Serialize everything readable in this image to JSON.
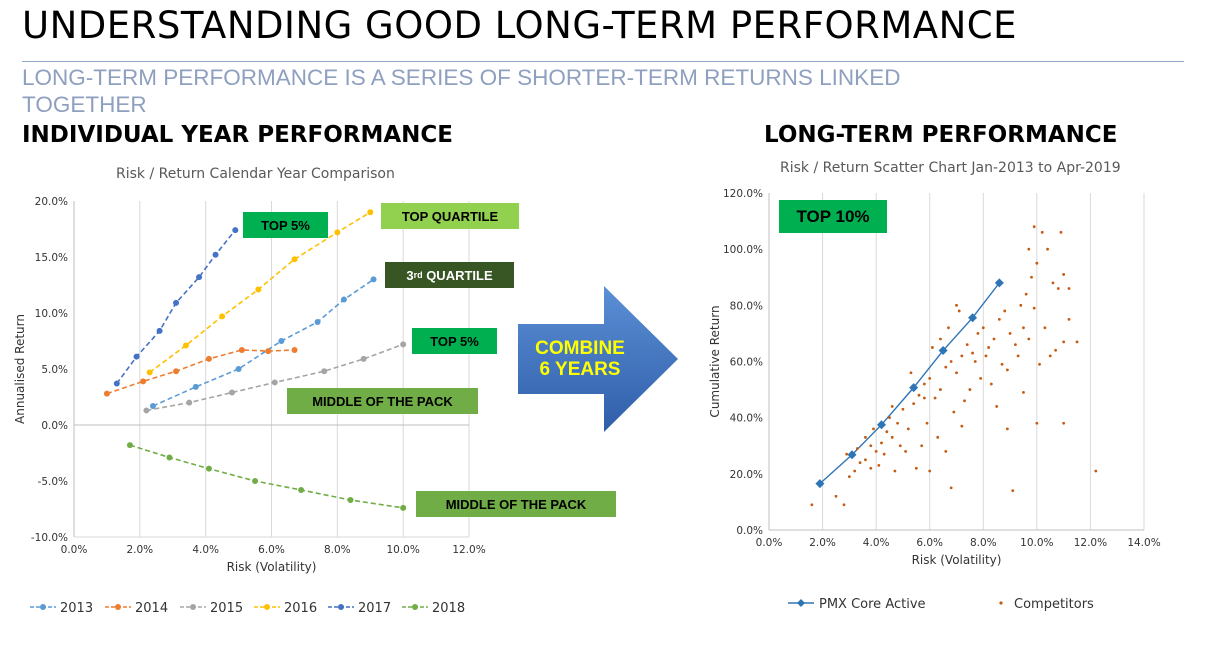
{
  "header": {
    "title": "UNDERSTANDING GOOD LONG-TERM PERFORMANCE",
    "subtitle": "LONG-TERM PERFORMANCE IS A SERIES OF SHORTER-TERM RETURNS LINKED TOGETHER"
  },
  "left_section": {
    "heading": "INDIVIDUAL YEAR PERFORMANCE"
  },
  "right_section": {
    "heading": "LONG-TERM PERFORMANCE"
  },
  "arrow": {
    "line1": "COMBINE",
    "line2": "6 YEARS",
    "color": "#3f6fb8"
  },
  "tags": {
    "top5_upper": "TOP 5%",
    "top_quartile": "TOP QUARTILE",
    "third_quartile_num": "3",
    "third_quartile_sup": "rd",
    "third_quartile_rest": " QUARTILE",
    "top5_lower": "TOP 5%",
    "middle_upper": "MIDDLE OF THE PACK",
    "middle_lower": "MIDDLE OF THE PACK",
    "top10": "TOP 10%"
  },
  "chart_data": [
    {
      "type": "line",
      "title": "Risk / Return Calendar Year Comparison",
      "xlabel": "Risk (Volatility)",
      "ylabel": "Annualised Return",
      "xlim": [
        0,
        12
      ],
      "ylim": [
        -10,
        20
      ],
      "x_ticks": [
        "0.0%",
        "2.0%",
        "4.0%",
        "6.0%",
        "8.0%",
        "10.0%",
        "12.0%"
      ],
      "y_ticks": [
        "20.0%",
        "15.0%",
        "10.0%",
        "5.0%",
        "0.0%",
        "-5.0%",
        "-10.0%"
      ],
      "grid": "vertical",
      "legend": "bottom",
      "series": [
        {
          "name": "2013",
          "color": "#5b9bd5",
          "points": [
            [
              2.4,
              1.7
            ],
            [
              3.7,
              3.4
            ],
            [
              5.0,
              5.0
            ],
            [
              6.3,
              7.5
            ],
            [
              7.4,
              9.2
            ],
            [
              8.2,
              11.2
            ],
            [
              9.1,
              13.0
            ]
          ]
        },
        {
          "name": "2014",
          "color": "#ed7d31",
          "points": [
            [
              1.0,
              2.8
            ],
            [
              2.1,
              3.9
            ],
            [
              3.1,
              4.8
            ],
            [
              4.1,
              5.9
            ],
            [
              5.1,
              6.7
            ],
            [
              5.9,
              6.6
            ],
            [
              6.7,
              6.7
            ]
          ]
        },
        {
          "name": "2015",
          "color": "#a5a5a5",
          "points": [
            [
              2.2,
              1.3
            ],
            [
              3.5,
              2.0
            ],
            [
              4.8,
              2.9
            ],
            [
              6.1,
              3.8
            ],
            [
              7.6,
              4.8
            ],
            [
              8.8,
              5.9
            ],
            [
              10.0,
              7.2
            ]
          ]
        },
        {
          "name": "2016",
          "color": "#ffc000",
          "points": [
            [
              2.3,
              4.7
            ],
            [
              3.4,
              7.1
            ],
            [
              4.5,
              9.7
            ],
            [
              5.6,
              12.1
            ],
            [
              6.7,
              14.8
            ],
            [
              8.0,
              17.2
            ],
            [
              9.0,
              19.0
            ]
          ]
        },
        {
          "name": "2017",
          "color": "#4472c4",
          "points": [
            [
              1.3,
              3.7
            ],
            [
              1.9,
              6.1
            ],
            [
              2.6,
              8.4
            ],
            [
              3.1,
              10.9
            ],
            [
              3.8,
              13.2
            ],
            [
              4.3,
              15.2
            ],
            [
              4.9,
              17.4
            ]
          ]
        },
        {
          "name": "2018",
          "color": "#70ad47",
          "points": [
            [
              1.7,
              -1.8
            ],
            [
              2.9,
              -2.9
            ],
            [
              4.1,
              -3.9
            ],
            [
              5.5,
              -5.0
            ],
            [
              6.9,
              -5.8
            ],
            [
              8.4,
              -6.7
            ],
            [
              10.0,
              -7.4
            ]
          ]
        }
      ]
    },
    {
      "type": "scatter",
      "title": "Risk / Return Scatter Chart Jan-2013 to Apr-2019",
      "xlabel": "Risk (Volatility)",
      "ylabel": "Cumulative Return",
      "xlim": [
        0,
        14
      ],
      "ylim": [
        0,
        120
      ],
      "x_ticks": [
        "0.0%",
        "2.0%",
        "4.0%",
        "6.0%",
        "8.0%",
        "10.0%",
        "12.0%",
        "14.0%"
      ],
      "y_ticks": [
        "120.0%",
        "100.0%",
        "80.0%",
        "60.0%",
        "40.0%",
        "20.0%",
        "0.0%"
      ],
      "grid": "vertical",
      "legend": "bottom",
      "series": [
        {
          "name": "PMX Core Active",
          "color": "#2e75b6",
          "points": [
            [
              1.9,
              16.5
            ],
            [
              3.1,
              26.8
            ],
            [
              4.2,
              37.5
            ],
            [
              5.4,
              50.7
            ],
            [
              6.5,
              63.9
            ],
            [
              7.6,
              75.6
            ],
            [
              8.6,
              88.0
            ]
          ]
        },
        {
          "name": "Competitors",
          "color": "#c55a11",
          "points": [
            [
              1.6,
              9
            ],
            [
              2.5,
              12
            ],
            [
              2.8,
              9
            ],
            [
              3.0,
              19
            ],
            [
              3.2,
              21
            ],
            [
              3.4,
              24
            ],
            [
              3.6,
              25
            ],
            [
              3.8,
              22
            ],
            [
              4.0,
              28
            ],
            [
              4.2,
              31
            ],
            [
              4.4,
              35
            ],
            [
              4.6,
              33
            ],
            [
              3.8,
              30
            ],
            [
              4.5,
              40
            ],
            [
              4.8,
              38
            ],
            [
              5.0,
              43
            ],
            [
              5.2,
              36
            ],
            [
              5.4,
              45
            ],
            [
              5.6,
              48
            ],
            [
              5.8,
              52
            ],
            [
              6.0,
              54
            ],
            [
              6.2,
              47
            ],
            [
              6.4,
              50
            ],
            [
              6.6,
              58
            ],
            [
              6.8,
              60
            ],
            [
              7.0,
              56
            ],
            [
              7.2,
              62
            ],
            [
              7.4,
              66
            ],
            [
              7.6,
              63
            ],
            [
              7.8,
              70
            ],
            [
              8.0,
              72
            ],
            [
              8.2,
              65
            ],
            [
              8.4,
              68
            ],
            [
              8.6,
              75
            ],
            [
              8.8,
              78
            ],
            [
              9.0,
              70
            ],
            [
              9.2,
              66
            ],
            [
              9.4,
              80
            ],
            [
              9.6,
              84
            ],
            [
              9.8,
              90
            ],
            [
              10.0,
              95
            ],
            [
              10.2,
              106
            ],
            [
              9.9,
              108
            ],
            [
              10.4,
              100
            ],
            [
              10.6,
              88
            ],
            [
              10.8,
              86
            ],
            [
              11.0,
              91
            ],
            [
              11.2,
              75
            ],
            [
              11.5,
              67
            ],
            [
              11.0,
              67
            ],
            [
              10.0,
              38
            ],
            [
              11.0,
              38
            ],
            [
              12.2,
              21
            ],
            [
              9.1,
              14
            ],
            [
              8.9,
              36
            ],
            [
              7.2,
              37
            ],
            [
              6.8,
              15
            ],
            [
              6.0,
              21
            ],
            [
              5.5,
              22
            ],
            [
              4.7,
              21
            ],
            [
              5.1,
              28
            ],
            [
              5.7,
              30
            ],
            [
              6.3,
              33
            ],
            [
              6.9,
              42
            ],
            [
              7.3,
              46
            ],
            [
              7.9,
              54
            ],
            [
              8.3,
              52
            ],
            [
              8.7,
              59
            ],
            [
              9.3,
              62
            ],
            [
              9.7,
              68
            ],
            [
              10.3,
              72
            ],
            [
              10.5,
              62
            ],
            [
              9.5,
              49
            ],
            [
              8.5,
              44
            ],
            [
              6.6,
              28
            ],
            [
              4.9,
              30
            ],
            [
              4.3,
              27
            ],
            [
              3.6,
              33
            ],
            [
              5.3,
              56
            ],
            [
              6.1,
              65
            ],
            [
              6.7,
              72
            ],
            [
              7.1,
              78
            ],
            [
              7.7,
              60
            ],
            [
              8.1,
              62
            ],
            [
              9.9,
              79
            ],
            [
              10.1,
              59
            ],
            [
              10.7,
              64
            ],
            [
              11.2,
              86
            ],
            [
              4.1,
              23
            ],
            [
              5.9,
              38
            ],
            [
              7.5,
              50
            ],
            [
              8.9,
              57
            ],
            [
              9.5,
              72
            ],
            [
              10.9,
              106
            ],
            [
              9.7,
              100
            ],
            [
              7.0,
              80
            ],
            [
              6.4,
              68
            ],
            [
              5.8,
              47
            ],
            [
              4.6,
              44
            ],
            [
              3.9,
              36
            ],
            [
              3.3,
              29
            ],
            [
              2.9,
              27
            ]
          ]
        }
      ]
    }
  ]
}
